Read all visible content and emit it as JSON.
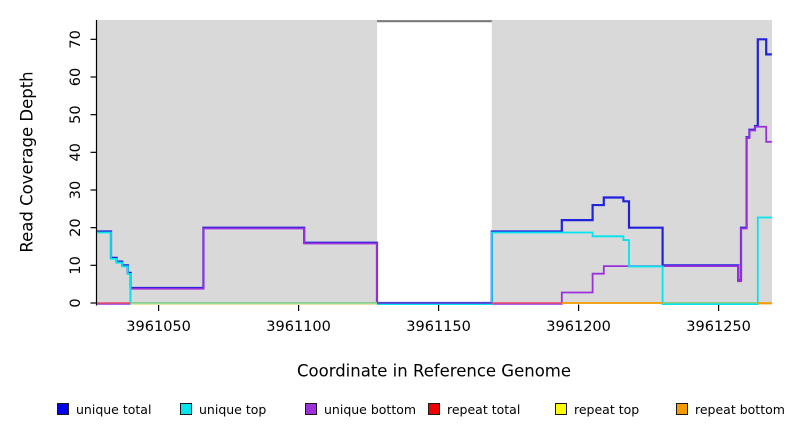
{
  "chart_data": {
    "type": "line",
    "step": true,
    "title": "",
    "xlabel": "Coordinate in Reference Genome",
    "ylabel": "Read Coverage Depth",
    "xlim": [
      3961028,
      3961269
    ],
    "ylim": [
      0,
      75
    ],
    "x_ticks": [
      3961050,
      3961100,
      3961150,
      3961200,
      3961250
    ],
    "y_ticks": [
      0,
      10,
      20,
      30,
      40,
      50,
      60,
      70
    ],
    "grid": false,
    "plot_bg": "#D9D9D9",
    "axis_color": "#000000",
    "masked_region": {
      "from": 3961128,
      "to": 3961169,
      "fill": "#FFFFFF",
      "cap_color": "#7C7C7C"
    },
    "series": [
      {
        "name": "unique total",
        "color": "#2222DD",
        "width": 2.2,
        "dy": 0,
        "draw": true,
        "steps": [
          [
            3961028,
            19
          ],
          [
            3961033,
            12
          ],
          [
            3961035,
            11
          ],
          [
            3961037,
            10
          ],
          [
            3961039,
            8
          ],
          [
            3961040,
            4
          ],
          [
            3961066,
            20
          ],
          [
            3961102,
            16
          ],
          [
            3961128,
            0
          ],
          [
            3961169,
            19
          ],
          [
            3961194,
            22
          ],
          [
            3961205,
            26
          ],
          [
            3961209,
            28
          ],
          [
            3961216,
            27
          ],
          [
            3961218,
            20
          ],
          [
            3961230,
            10
          ],
          [
            3961257,
            6
          ],
          [
            3961258,
            20
          ],
          [
            3961260,
            44
          ],
          [
            3961261,
            46
          ],
          [
            3961263,
            47
          ],
          [
            3961264,
            70
          ],
          [
            3961267,
            66
          ],
          [
            3961269,
            66
          ]
        ]
      },
      {
        "name": "unique bottom",
        "color": "#9B30DC",
        "width": 1.8,
        "dy": 0.8,
        "draw": true,
        "steps": [
          [
            3961028,
            0
          ],
          [
            3961040,
            4
          ],
          [
            3961066,
            20
          ],
          [
            3961102,
            16
          ],
          [
            3961128,
            0
          ],
          [
            3961194,
            3
          ],
          [
            3961205,
            8
          ],
          [
            3961209,
            10
          ],
          [
            3961257,
            6
          ],
          [
            3961258,
            20
          ],
          [
            3961260,
            44
          ],
          [
            3961261,
            46
          ],
          [
            3961263,
            47
          ],
          [
            3961267,
            43
          ],
          [
            3961269,
            43
          ]
        ]
      },
      {
        "name": "unique top",
        "color": "#00E5EE",
        "width": 1.8,
        "dy": 1.1,
        "draw": true,
        "steps": [
          [
            3961028,
            19
          ],
          [
            3961033,
            12
          ],
          [
            3961035,
            11
          ],
          [
            3961037,
            10
          ],
          [
            3961039,
            8
          ],
          [
            3961040,
            0
          ],
          [
            3961169,
            19
          ],
          [
            3961205,
            18
          ],
          [
            3961216,
            17
          ],
          [
            3961218,
            10
          ],
          [
            3961230,
            0
          ],
          [
            3961264,
            23
          ],
          [
            3961269,
            23
          ]
        ]
      },
      {
        "name": "repeat total",
        "color": "#EE0000",
        "width": 1.6,
        "dy": 0,
        "draw": false,
        "steps": [
          [
            3961028,
            0
          ],
          [
            3961269,
            0
          ]
        ]
      },
      {
        "name": "repeat top",
        "color": "#FFFF00",
        "width": 1.6,
        "dy": 0,
        "draw": false,
        "steps": [
          [
            3961028,
            0
          ],
          [
            3961269,
            0
          ]
        ]
      },
      {
        "name": "repeat bottom",
        "color": "#F59B00",
        "width": 1.6,
        "dy": 0,
        "draw": false,
        "steps": [
          [
            3961028,
            0
          ],
          [
            3961269,
            0
          ]
        ]
      }
    ],
    "zero_line_segments": [
      {
        "from": 3961040,
        "to": 3961128,
        "color": "#E7E3A9",
        "dy": 1.3,
        "width": 1.3
      },
      {
        "from": 3961028,
        "to": 3961040,
        "color": "#E25069",
        "dy": 0,
        "width": 1.6
      },
      {
        "from": 3961040,
        "to": 3961128,
        "color": "#8CCD8C",
        "dy": -0.2,
        "width": 1.5
      },
      {
        "from": 3961128,
        "to": 3961169,
        "color": "#5C46D6",
        "dy": 0,
        "width": 1.7
      },
      {
        "from": 3961169,
        "to": 3961194,
        "color": "#E25069",
        "dy": 0,
        "width": 1.6
      },
      {
        "from": 3961194,
        "to": 3961230,
        "color": "#F59B00",
        "dy": 0,
        "width": 1.7
      },
      {
        "from": 3961230,
        "to": 3961264,
        "color": "#8CCD8C",
        "dy": -0.2,
        "width": 1.5
      },
      {
        "from": 3961264,
        "to": 3961269,
        "color": "#F59B00",
        "dy": 0.3,
        "width": 2.2
      }
    ],
    "legend": [
      {
        "label": "unique total",
        "color": "#0000EE"
      },
      {
        "label": "unique top",
        "color": "#00E5EE"
      },
      {
        "label": "unique bottom",
        "color": "#9B30DC"
      },
      {
        "label": "repeat total",
        "color": "#EE0000"
      },
      {
        "label": "repeat top",
        "color": "#FFFF00"
      },
      {
        "label": "repeat bottom",
        "color": "#F59B00"
      }
    ]
  }
}
